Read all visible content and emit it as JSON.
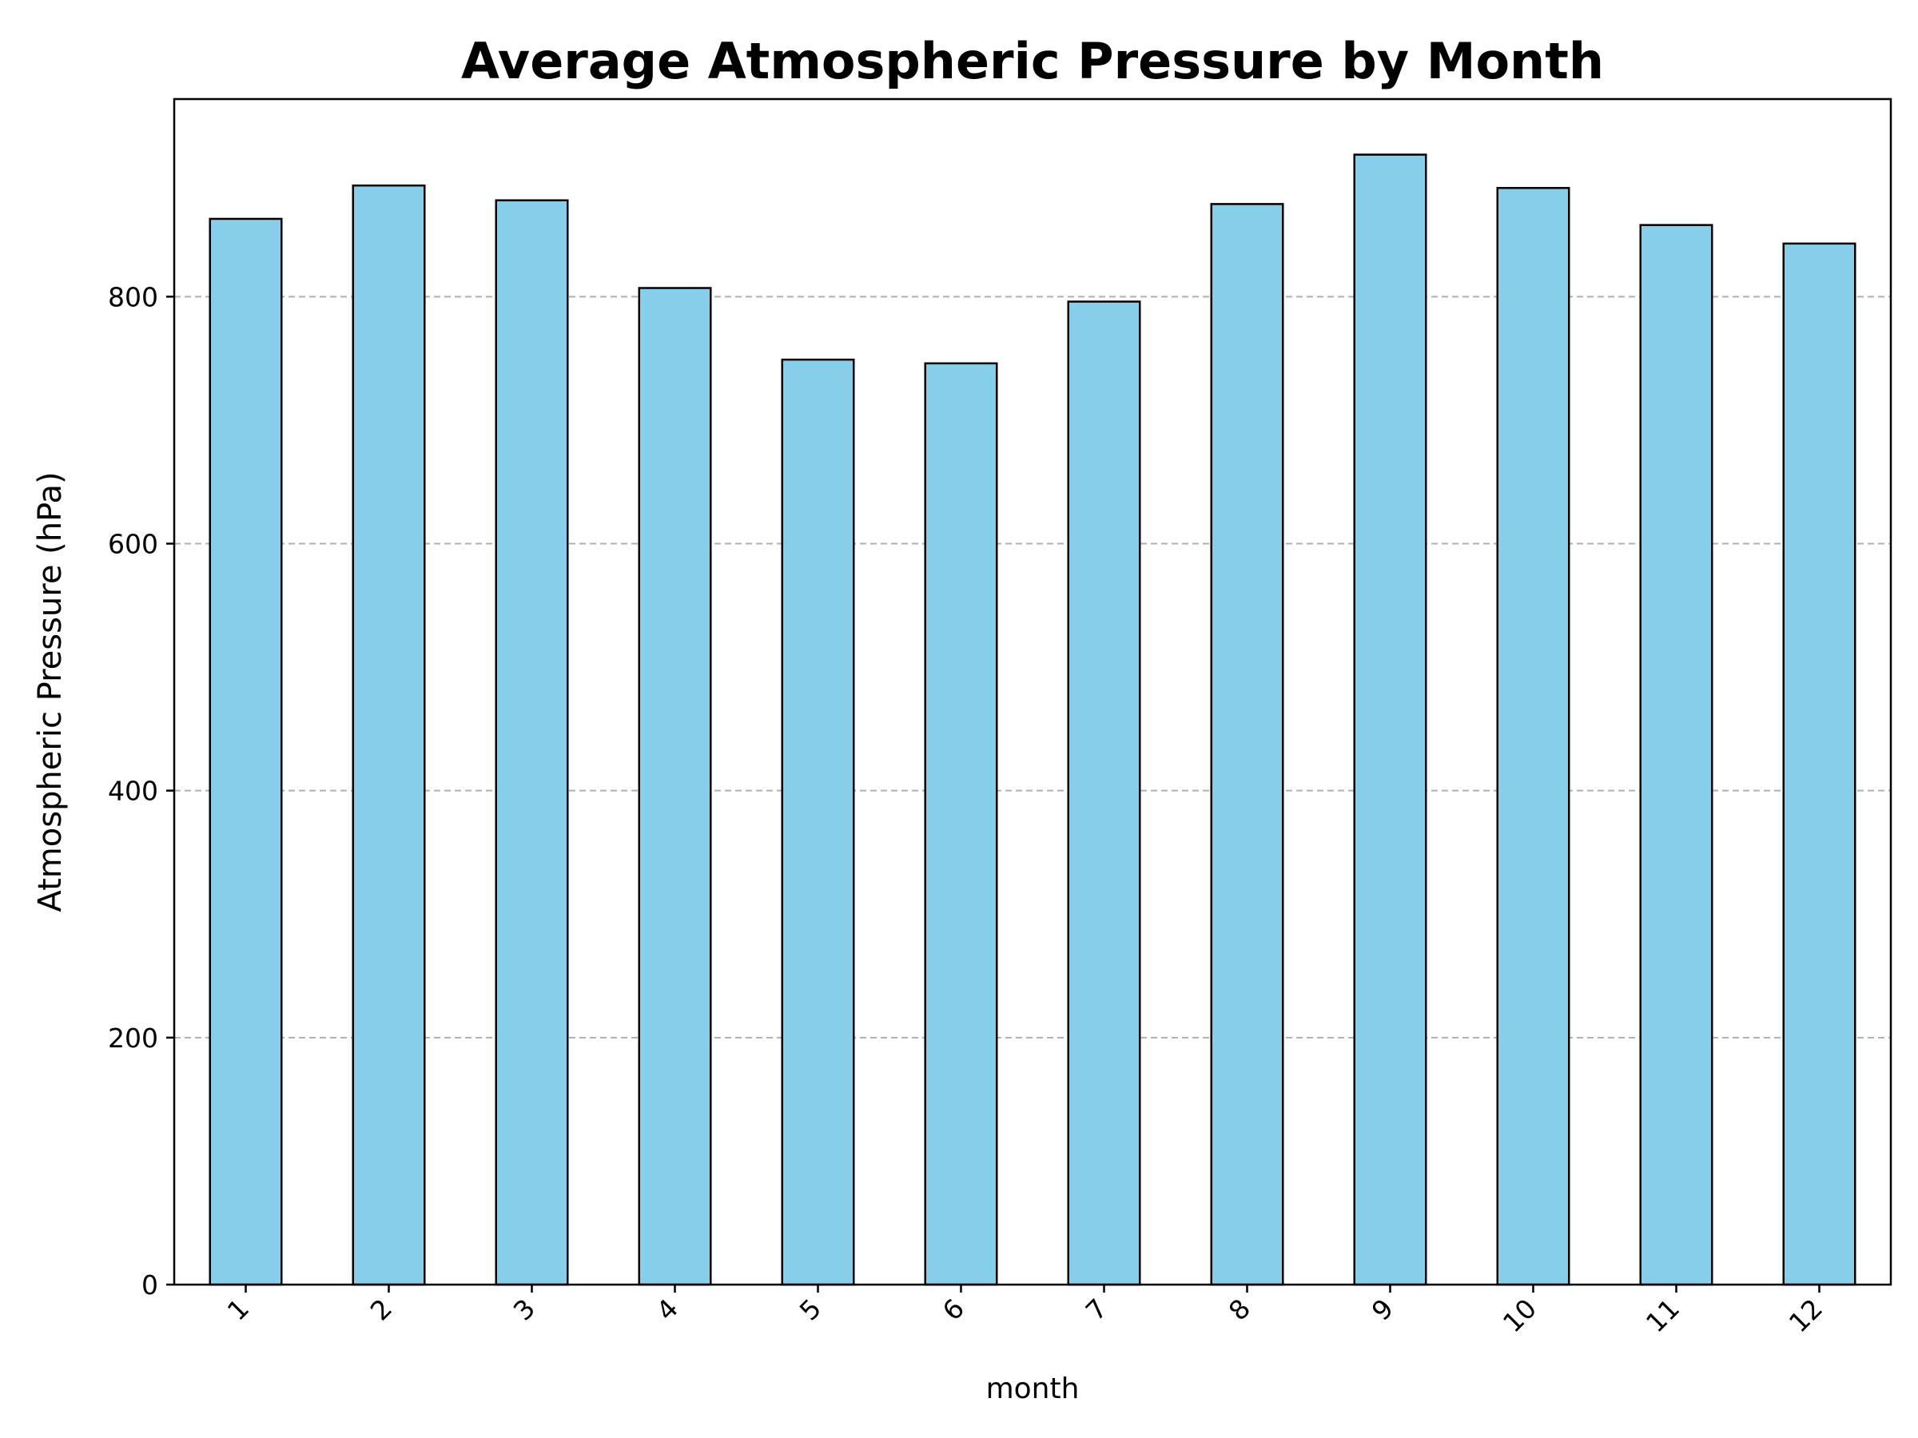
{
  "chart_data": {
    "type": "bar",
    "title": "Average Atmospheric Pressure by Month",
    "xlabel": "month",
    "ylabel": "Atmospheric Pressure (hPa)",
    "categories": [
      "1",
      "2",
      "3",
      "4",
      "5",
      "6",
      "7",
      "8",
      "9",
      "10",
      "11",
      "12"
    ],
    "values": [
      863,
      890,
      878,
      807,
      749,
      746,
      796,
      875,
      915,
      888,
      858,
      843
    ],
    "ylim": [
      0,
      960
    ],
    "yticks": [
      0,
      200,
      400,
      600,
      800
    ],
    "grid": "y-dashed",
    "bar_color": "#87CEEB",
    "edge_color": "#000000",
    "grid_color": "#b0b0b0"
  }
}
